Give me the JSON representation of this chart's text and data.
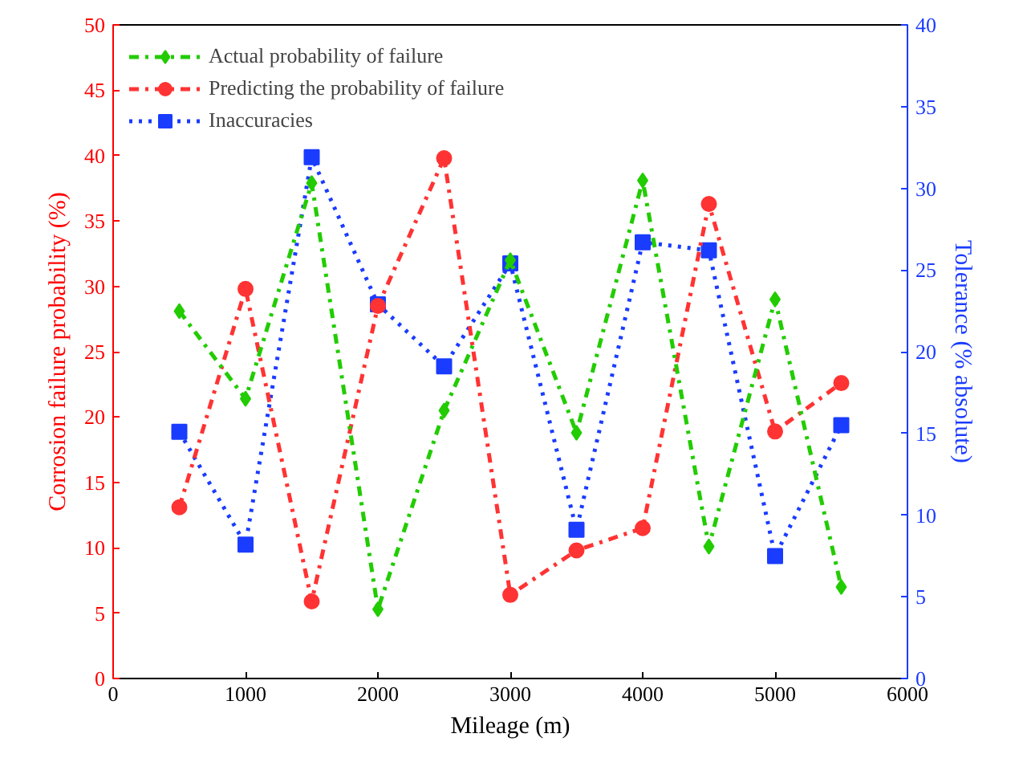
{
  "chart_data": {
    "type": "line",
    "xlabel": "Mileage (m)",
    "ylabel": "Corrosion failure probability (%)",
    "y2label": "Tolerance (% absolute)",
    "x": [
      500,
      1000,
      1500,
      2000,
      2500,
      3000,
      3500,
      4000,
      4500,
      5000,
      5500
    ],
    "xlim": [
      0,
      6000
    ],
    "xticks": [
      0,
      1000,
      2000,
      3000,
      4000,
      5000,
      6000
    ],
    "ylim": [
      0,
      50
    ],
    "yticks": [
      0,
      5,
      10,
      15,
      20,
      25,
      30,
      35,
      40,
      45,
      50
    ],
    "y2lim": [
      0,
      40
    ],
    "y2ticks": [
      0,
      5,
      10,
      15,
      20,
      25,
      30,
      35,
      40
    ],
    "grid": false,
    "legend": "top left",
    "series": [
      {
        "name": "Actual probability of failure",
        "color": "#22cc00",
        "marker": "diamond",
        "line_style": "dashed",
        "values": [
          28.1,
          21.4,
          37.9,
          5.3,
          20.5,
          32,
          18.8,
          38.1,
          10.1,
          29,
          7
        ]
      },
      {
        "name": "Predicting the probability of failure",
        "color": "#ff3333",
        "marker": "circle",
        "line_style": "dashed",
        "values": [
          13.1,
          29.8,
          5.9,
          28.5,
          39.8,
          6.4,
          9.8,
          11.5,
          36.3,
          18.9,
          22.6
        ]
      },
      {
        "name": "Inaccuracies",
        "color": "#1a3cff",
        "marker": "square",
        "line_style": "dotted",
        "axis": "y2",
        "values": [
          15.1,
          8.2,
          31.9,
          22.9,
          19.1,
          25.4,
          9.1,
          26.7,
          26.2,
          7.5,
          15.5
        ]
      }
    ]
  }
}
